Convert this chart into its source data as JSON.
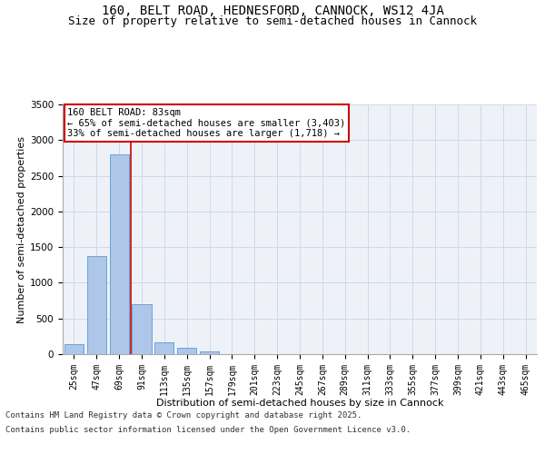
{
  "title_line1": "160, BELT ROAD, HEDNESFORD, CANNOCK, WS12 4JA",
  "title_line2": "Size of property relative to semi-detached houses in Cannock",
  "xlabel": "Distribution of semi-detached houses by size in Cannock",
  "ylabel": "Number of semi-detached properties",
  "categories": [
    "25sqm",
    "47sqm",
    "69sqm",
    "91sqm",
    "113sqm",
    "135sqm",
    "157sqm",
    "179sqm",
    "201sqm",
    "223sqm",
    "245sqm",
    "267sqm",
    "289sqm",
    "311sqm",
    "333sqm",
    "355sqm",
    "377sqm",
    "399sqm",
    "421sqm",
    "443sqm",
    "465sqm"
  ],
  "values": [
    140,
    1380,
    2800,
    700,
    165,
    90,
    35,
    0,
    0,
    0,
    0,
    0,
    0,
    0,
    0,
    0,
    0,
    0,
    0,
    0,
    0
  ],
  "bar_color": "#aec6e8",
  "bar_edge_color": "#5b9bd5",
  "grid_color": "#d0d8e8",
  "background_color": "#eef2f8",
  "vline_color": "#cc0000",
  "annotation_title": "160 BELT ROAD: 83sqm",
  "annotation_line1": "← 65% of semi-detached houses are smaller (3,403)",
  "annotation_line2": "33% of semi-detached houses are larger (1,718) →",
  "annotation_box_color": "#cc0000",
  "ylim": [
    0,
    3500
  ],
  "yticks": [
    0,
    500,
    1000,
    1500,
    2000,
    2500,
    3000,
    3500
  ],
  "footer_line1": "Contains HM Land Registry data © Crown copyright and database right 2025.",
  "footer_line2": "Contains public sector information licensed under the Open Government Licence v3.0.",
  "title_fontsize": 10,
  "subtitle_fontsize": 9,
  "axis_label_fontsize": 8,
  "tick_fontsize": 7,
  "annotation_fontsize": 7.5,
  "footer_fontsize": 6.5
}
